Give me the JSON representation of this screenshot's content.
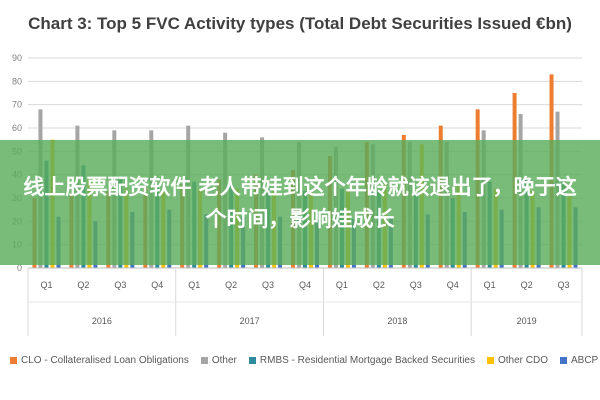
{
  "chart_data": {
    "type": "bar",
    "title": "Chart 3: Top 5 FVC Activity types (Total Debt Securities Issued €bn)",
    "xlabel": "",
    "ylabel": "",
    "ylim": [
      0,
      90
    ],
    "yticks": [
      0,
      10,
      20,
      30,
      40,
      50,
      60,
      70,
      80,
      90
    ],
    "grid": true,
    "legend_position": "bottom",
    "categories": [
      "Q1",
      "Q2",
      "Q3",
      "Q4",
      "Q1",
      "Q2",
      "Q3",
      "Q4",
      "Q1",
      "Q2",
      "Q3",
      "Q4",
      "Q1",
      "Q2",
      "Q3"
    ],
    "years": [
      {
        "label": "2016",
        "quarters": 4
      },
      {
        "label": "2017",
        "quarters": 4
      },
      {
        "label": "2018",
        "quarters": 4
      },
      {
        "label": "2019",
        "quarters": 3
      }
    ],
    "series": [
      {
        "name": "CLO - Collateralised Loan Obligations",
        "color": "#ED7D31",
        "values": [
          30,
          32,
          33,
          35,
          36,
          38,
          40,
          42,
          48,
          54,
          57,
          61,
          68,
          75,
          83
        ]
      },
      {
        "name": "Other",
        "color": "#A5A5A5",
        "values": [
          68,
          61,
          59,
          59,
          61,
          58,
          56,
          54,
          52,
          53,
          54,
          54,
          59,
          66,
          67
        ]
      },
      {
        "name": "RMBS - Residential Mortgage Backed Securities",
        "color": "#2E8B9B",
        "values": [
          46,
          44,
          38,
          35,
          37,
          36,
          34,
          33,
          34,
          33,
          32,
          30,
          37,
          38,
          38
        ]
      },
      {
        "name": "Other CDO",
        "color": "#FFC000",
        "values": [
          55,
          38,
          34,
          33,
          34,
          34,
          33,
          33,
          33,
          36,
          53,
          36,
          34,
          33,
          32
        ]
      },
      {
        "name": "ABCP",
        "color": "#4472C4",
        "values": [
          22,
          20,
          24,
          25,
          23,
          22,
          22,
          21,
          21,
          22,
          23,
          24,
          25,
          26,
          26
        ]
      }
    ]
  },
  "overlay": {
    "text": "线上股票配资软件 老人带娃到这个年龄就该退出了，晚于这个时间，影响娃成长"
  }
}
